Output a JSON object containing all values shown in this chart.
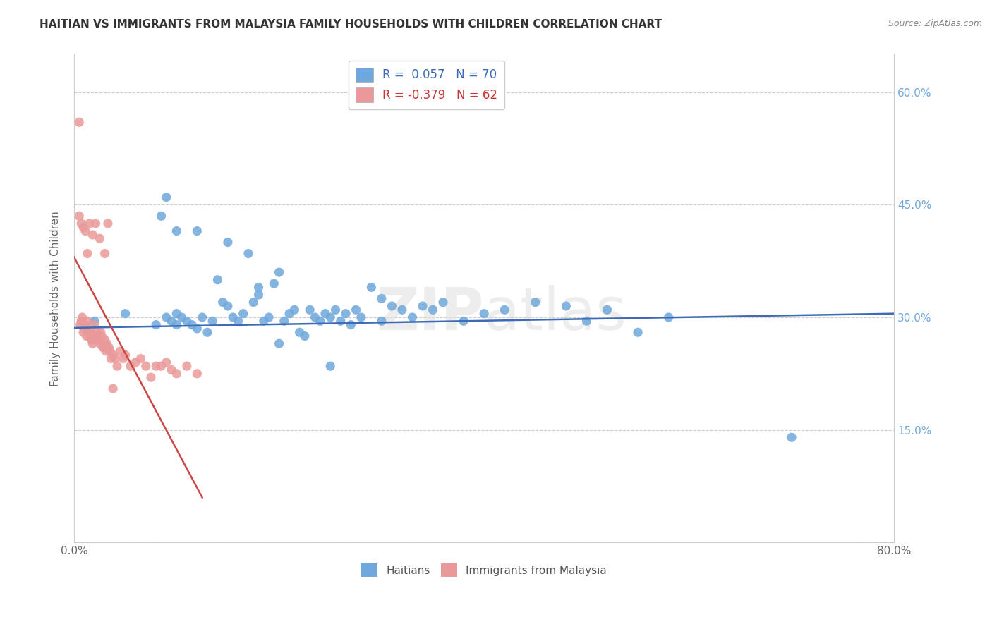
{
  "title": "HAITIAN VS IMMIGRANTS FROM MALAYSIA FAMILY HOUSEHOLDS WITH CHILDREN CORRELATION CHART",
  "source": "Source: ZipAtlas.com",
  "ylabel": "Family Households with Children",
  "blue_R": 0.057,
  "blue_N": 70,
  "pink_R": -0.379,
  "pink_N": 62,
  "xlim": [
    0.0,
    0.8
  ],
  "ylim": [
    0.0,
    0.65
  ],
  "ytick_positions": [
    0.0,
    0.15,
    0.3,
    0.45,
    0.6
  ],
  "ytick_labels": [
    "",
    "15.0%",
    "30.0%",
    "45.0%",
    "60.0%"
  ],
  "blue_color": "#6fa8dc",
  "pink_color": "#ea9999",
  "blue_line_color": "#3d6bb5",
  "pink_line_color": "#cc4444",
  "background_color": "#ffffff",
  "blue_scatter_x": [
    0.02,
    0.05,
    0.08,
    0.09,
    0.095,
    0.1,
    0.1,
    0.105,
    0.11,
    0.115,
    0.12,
    0.125,
    0.13,
    0.135,
    0.14,
    0.145,
    0.15,
    0.155,
    0.16,
    0.165,
    0.17,
    0.175,
    0.18,
    0.185,
    0.19,
    0.195,
    0.2,
    0.205,
    0.21,
    0.215,
    0.22,
    0.225,
    0.23,
    0.235,
    0.24,
    0.245,
    0.25,
    0.255,
    0.26,
    0.265,
    0.27,
    0.275,
    0.28,
    0.29,
    0.3,
    0.31,
    0.32,
    0.33,
    0.34,
    0.35,
    0.36,
    0.38,
    0.4,
    0.42,
    0.45,
    0.48,
    0.5,
    0.52,
    0.55,
    0.58,
    0.085,
    0.09,
    0.1,
    0.12,
    0.15,
    0.18,
    0.2,
    0.25,
    0.3,
    0.7
  ],
  "blue_scatter_y": [
    0.295,
    0.305,
    0.29,
    0.3,
    0.295,
    0.305,
    0.29,
    0.3,
    0.295,
    0.29,
    0.285,
    0.3,
    0.28,
    0.295,
    0.35,
    0.32,
    0.315,
    0.3,
    0.295,
    0.305,
    0.385,
    0.32,
    0.34,
    0.295,
    0.3,
    0.345,
    0.36,
    0.295,
    0.305,
    0.31,
    0.28,
    0.275,
    0.31,
    0.3,
    0.295,
    0.305,
    0.3,
    0.31,
    0.295,
    0.305,
    0.29,
    0.31,
    0.3,
    0.34,
    0.295,
    0.315,
    0.31,
    0.3,
    0.315,
    0.31,
    0.32,
    0.295,
    0.305,
    0.31,
    0.32,
    0.315,
    0.295,
    0.31,
    0.28,
    0.3,
    0.435,
    0.46,
    0.415,
    0.415,
    0.4,
    0.33,
    0.265,
    0.235,
    0.325,
    0.14
  ],
  "pink_scatter_x": [
    0.005,
    0.006,
    0.007,
    0.008,
    0.009,
    0.01,
    0.011,
    0.012,
    0.013,
    0.014,
    0.015,
    0.016,
    0.017,
    0.018,
    0.019,
    0.02,
    0.021,
    0.022,
    0.023,
    0.024,
    0.025,
    0.026,
    0.027,
    0.028,
    0.029,
    0.03,
    0.031,
    0.032,
    0.033,
    0.034,
    0.035,
    0.036,
    0.038,
    0.04,
    0.042,
    0.045,
    0.048,
    0.05,
    0.055,
    0.06,
    0.065,
    0.07,
    0.075,
    0.08,
    0.085,
    0.09,
    0.095,
    0.1,
    0.11,
    0.12,
    0.005,
    0.007,
    0.009,
    0.011,
    0.013,
    0.015,
    0.018,
    0.021,
    0.025,
    0.03,
    0.033,
    0.038
  ],
  "pink_scatter_y": [
    0.56,
    0.29,
    0.295,
    0.3,
    0.28,
    0.285,
    0.29,
    0.275,
    0.295,
    0.28,
    0.275,
    0.28,
    0.27,
    0.265,
    0.27,
    0.29,
    0.275,
    0.28,
    0.27,
    0.27,
    0.265,
    0.28,
    0.275,
    0.26,
    0.26,
    0.27,
    0.255,
    0.265,
    0.26,
    0.26,
    0.255,
    0.245,
    0.25,
    0.245,
    0.235,
    0.255,
    0.245,
    0.25,
    0.235,
    0.24,
    0.245,
    0.235,
    0.22,
    0.235,
    0.235,
    0.24,
    0.23,
    0.225,
    0.235,
    0.225,
    0.435,
    0.425,
    0.42,
    0.415,
    0.385,
    0.425,
    0.41,
    0.425,
    0.405,
    0.385,
    0.425,
    0.205
  ],
  "blue_line_x": [
    0.0,
    0.8
  ],
  "blue_line_y": [
    0.286,
    0.305
  ],
  "pink_line_x": [
    0.0,
    0.125
  ],
  "pink_line_y": [
    0.38,
    0.06
  ]
}
